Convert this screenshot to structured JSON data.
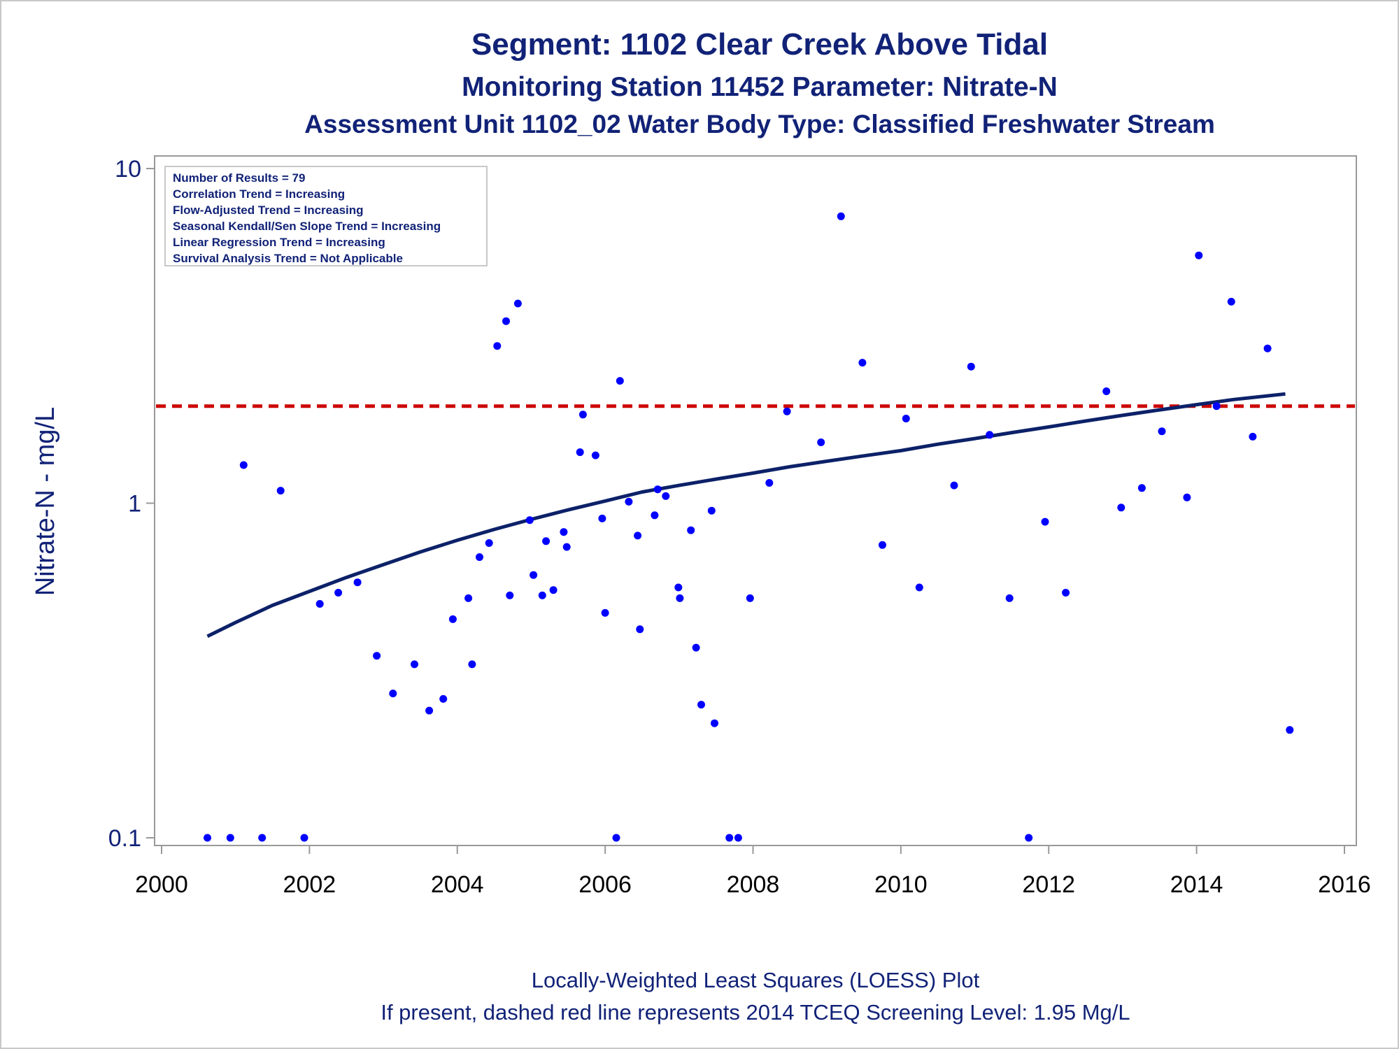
{
  "titles": {
    "line1": "Segment: 1102  Clear Creek Above Tidal",
    "line2": "Monitoring Station 11452 Parameter: Nitrate-N",
    "line3": "Assessment Unit 1102_02   Water Body Type: Classified Freshwater Stream"
  },
  "stats_box": [
    "Number of Results = 79",
    "Correlation Trend = Increasing",
    "Flow-Adjusted Trend = Increasing",
    "Seasonal Kendall/Sen Slope Trend = Increasing",
    "Linear Regression Trend = Increasing",
    "Survival Analysis Trend = Not Applicable"
  ],
  "footnotes": {
    "line1": "Locally-Weighted Least Squares (LOESS) Plot",
    "line2": "If present, dashed red line represents 2014 TCEQ Screening Level: 1.95 Mg/L"
  },
  "colors": {
    "text": "#112277",
    "points": "#0000ff",
    "loess": "#0c2168",
    "screening": "#cc0000",
    "axis": "#999999"
  },
  "chart_data": {
    "type": "scatter",
    "xlabel": "",
    "ylabel": "Nitrate-N - mg/L",
    "xlim": [
      2000,
      2016
    ],
    "ylim": [
      0.1,
      10
    ],
    "yscale": "log",
    "xticks": [
      2000,
      2002,
      2004,
      2006,
      2008,
      2010,
      2012,
      2014,
      2016
    ],
    "yticks": [
      {
        "value": 0.1,
        "label": "0.1"
      },
      {
        "value": 1,
        "label": "1"
      },
      {
        "value": 10,
        "label": "10"
      }
    ],
    "grid": false,
    "screening_level": 1.95,
    "points": [
      [
        2000.62,
        0.1
      ],
      [
        2000.93,
        0.1
      ],
      [
        2001.11,
        1.3
      ],
      [
        2001.36,
        0.1
      ],
      [
        2001.61,
        1.09
      ],
      [
        2001.93,
        0.1
      ],
      [
        2002.14,
        0.5
      ],
      [
        2002.39,
        0.54
      ],
      [
        2002.65,
        0.58
      ],
      [
        2002.91,
        0.35
      ],
      [
        2003.13,
        0.27
      ],
      [
        2003.42,
        0.33
      ],
      [
        2003.62,
        0.24
      ],
      [
        2003.81,
        0.26
      ],
      [
        2003.94,
        0.45
      ],
      [
        2004.15,
        0.52
      ],
      [
        2004.2,
        0.33
      ],
      [
        2004.3,
        0.69
      ],
      [
        2004.43,
        0.76
      ],
      [
        2004.54,
        2.95
      ],
      [
        2004.66,
        3.5
      ],
      [
        2004.71,
        0.53
      ],
      [
        2004.82,
        3.95
      ],
      [
        2004.98,
        0.89
      ],
      [
        2005.03,
        0.61
      ],
      [
        2005.15,
        0.53
      ],
      [
        2005.2,
        0.77
      ],
      [
        2005.3,
        0.55
      ],
      [
        2005.44,
        0.82
      ],
      [
        2005.48,
        0.74
      ],
      [
        2005.66,
        1.42
      ],
      [
        2005.7,
        1.84
      ],
      [
        2005.87,
        1.39
      ],
      [
        2005.96,
        0.9
      ],
      [
        2006.0,
        0.47
      ],
      [
        2006.15,
        0.1
      ],
      [
        2006.2,
        2.32
      ],
      [
        2006.32,
        1.01
      ],
      [
        2006.44,
        0.8
      ],
      [
        2006.47,
        0.42
      ],
      [
        2006.67,
        0.92
      ],
      [
        2006.71,
        1.1
      ],
      [
        2006.82,
        1.05
      ],
      [
        2006.99,
        0.56
      ],
      [
        2007.01,
        0.52
      ],
      [
        2007.16,
        0.83
      ],
      [
        2007.23,
        0.37
      ],
      [
        2007.3,
        0.25
      ],
      [
        2007.44,
        0.95
      ],
      [
        2007.48,
        0.22
      ],
      [
        2007.68,
        0.1
      ],
      [
        2007.8,
        0.1
      ],
      [
        2007.96,
        0.52
      ],
      [
        2008.22,
        1.15
      ],
      [
        2008.46,
        1.88
      ],
      [
        2008.92,
        1.52
      ],
      [
        2009.19,
        7.2
      ],
      [
        2009.48,
        2.63
      ],
      [
        2009.75,
        0.75
      ],
      [
        2010.07,
        1.79
      ],
      [
        2010.25,
        0.56
      ],
      [
        2010.72,
        1.13
      ],
      [
        2010.95,
        2.56
      ],
      [
        2011.2,
        1.6
      ],
      [
        2011.47,
        0.52
      ],
      [
        2011.73,
        0.1
      ],
      [
        2011.95,
        0.88
      ],
      [
        2012.23,
        0.54
      ],
      [
        2012.78,
        2.16
      ],
      [
        2012.98,
        0.97
      ],
      [
        2013.26,
        1.11
      ],
      [
        2013.53,
        1.64
      ],
      [
        2013.87,
        1.04
      ],
      [
        2014.03,
        5.5
      ],
      [
        2014.27,
        1.95
      ],
      [
        2014.47,
        4.0
      ],
      [
        2014.76,
        1.58
      ],
      [
        2014.96,
        2.9
      ],
      [
        2015.26,
        0.21
      ]
    ],
    "loess": [
      [
        2000.62,
        0.4
      ],
      [
        2001.0,
        0.44
      ],
      [
        2001.5,
        0.495
      ],
      [
        2002.0,
        0.545
      ],
      [
        2002.5,
        0.6
      ],
      [
        2003.0,
        0.655
      ],
      [
        2003.5,
        0.715
      ],
      [
        2004.0,
        0.775
      ],
      [
        2004.5,
        0.835
      ],
      [
        2005.0,
        0.895
      ],
      [
        2005.5,
        0.955
      ],
      [
        2006.0,
        1.015
      ],
      [
        2006.5,
        1.08
      ],
      [
        2007.0,
        1.13
      ],
      [
        2007.5,
        1.18
      ],
      [
        2008.0,
        1.23
      ],
      [
        2008.5,
        1.285
      ],
      [
        2009.0,
        1.335
      ],
      [
        2009.5,
        1.385
      ],
      [
        2010.0,
        1.435
      ],
      [
        2010.5,
        1.5
      ],
      [
        2011.0,
        1.56
      ],
      [
        2011.5,
        1.625
      ],
      [
        2012.0,
        1.69
      ],
      [
        2012.5,
        1.76
      ],
      [
        2013.0,
        1.83
      ],
      [
        2013.5,
        1.9
      ],
      [
        2014.0,
        1.97
      ],
      [
        2014.5,
        2.04
      ],
      [
        2015.2,
        2.12
      ]
    ]
  }
}
